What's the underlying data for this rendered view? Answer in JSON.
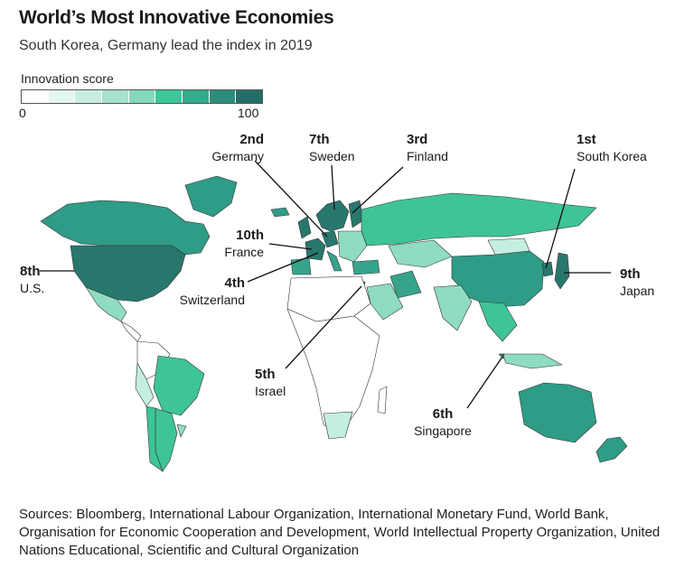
{
  "header": {
    "title": "World’s Most Innovative Economies",
    "subtitle": "South Korea, Germany lead the index in 2019"
  },
  "legend": {
    "title": "Innovation score",
    "min": "0",
    "max": "100",
    "colors": [
      "#ffffff",
      "#e3f6ef",
      "#c6eee0",
      "#a5e3cd",
      "#84d9bb",
      "#3cc79a",
      "#31ad8b",
      "#2b8d7a",
      "#256d67"
    ]
  },
  "colors": {
    "high": "#28776d",
    "mid": "#35a48b",
    "midlight": "#3ec497",
    "light": "#8fdcc0",
    "pale": "#c4eedf",
    "none": "#ffffff",
    "border": "#333333",
    "leader": "#111111"
  },
  "rankings": [
    {
      "id": "south-korea",
      "rank": "1st",
      "country": "South Korea"
    },
    {
      "id": "germany",
      "rank": "2nd",
      "country": "Germany"
    },
    {
      "id": "finland",
      "rank": "3rd",
      "country": "Finland"
    },
    {
      "id": "switzerland",
      "rank": "4th",
      "country": "Switzerland"
    },
    {
      "id": "israel",
      "rank": "5th",
      "country": "Israel"
    },
    {
      "id": "singapore",
      "rank": "6th",
      "country": "Singapore"
    },
    {
      "id": "sweden",
      "rank": "7th",
      "country": "Sweden"
    },
    {
      "id": "us",
      "rank": "8th",
      "country": "U.S."
    },
    {
      "id": "japan",
      "rank": "9th",
      "country": "Japan"
    },
    {
      "id": "france",
      "rank": "10th",
      "country": "France"
    }
  ],
  "sources": "Sources: Bloomberg, International Labour Organization, International Monetary Fund, World Bank, Organisation for Economic Cooperation and Development, World Intellectual Property Organization, United Nations Educational, Scientific and Cultural Organization"
}
